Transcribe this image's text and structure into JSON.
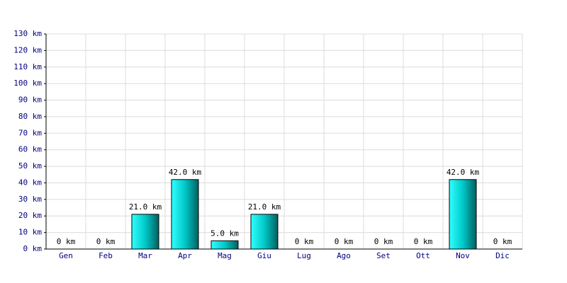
{
  "chart_data": {
    "type": "bar",
    "categories": [
      "Gen",
      "Feb",
      "Mar",
      "Apr",
      "Mag",
      "Giu",
      "Lug",
      "Ago",
      "Set",
      "Ott",
      "Nov",
      "Dic"
    ],
    "values": [
      0,
      0,
      21,
      42,
      5,
      21,
      0,
      0,
      0,
      0,
      42,
      0
    ],
    "value_labels": [
      "0 km",
      "0 km",
      "21.0 km",
      "42.0 km",
      "5.0 km",
      "21.0 km",
      "0 km",
      "0 km",
      "0 km",
      "0 km",
      "42.0 km",
      "0 km"
    ],
    "color": "#00c8c8",
    "ylim": [
      0,
      130
    ],
    "yticks": [
      {
        "value": 0,
        "label": "0 km"
      },
      {
        "value": 10,
        "label": "10 km"
      },
      {
        "value": 20,
        "label": "20 km"
      },
      {
        "value": 30,
        "label": "30 km"
      },
      {
        "value": 40,
        "label": "40 km"
      },
      {
        "value": 50,
        "label": "50 km"
      },
      {
        "value": 60,
        "label": "60 km"
      },
      {
        "value": 70,
        "label": "70 km"
      },
      {
        "value": 80,
        "label": "80 km"
      },
      {
        "value": 90,
        "label": "90 km"
      },
      {
        "value": 100,
        "label": "100 km"
      },
      {
        "value": 110,
        "label": "110 km"
      },
      {
        "value": 120,
        "label": "120 km"
      },
      {
        "value": 130,
        "label": "130 km"
      }
    ],
    "grid": true
  }
}
